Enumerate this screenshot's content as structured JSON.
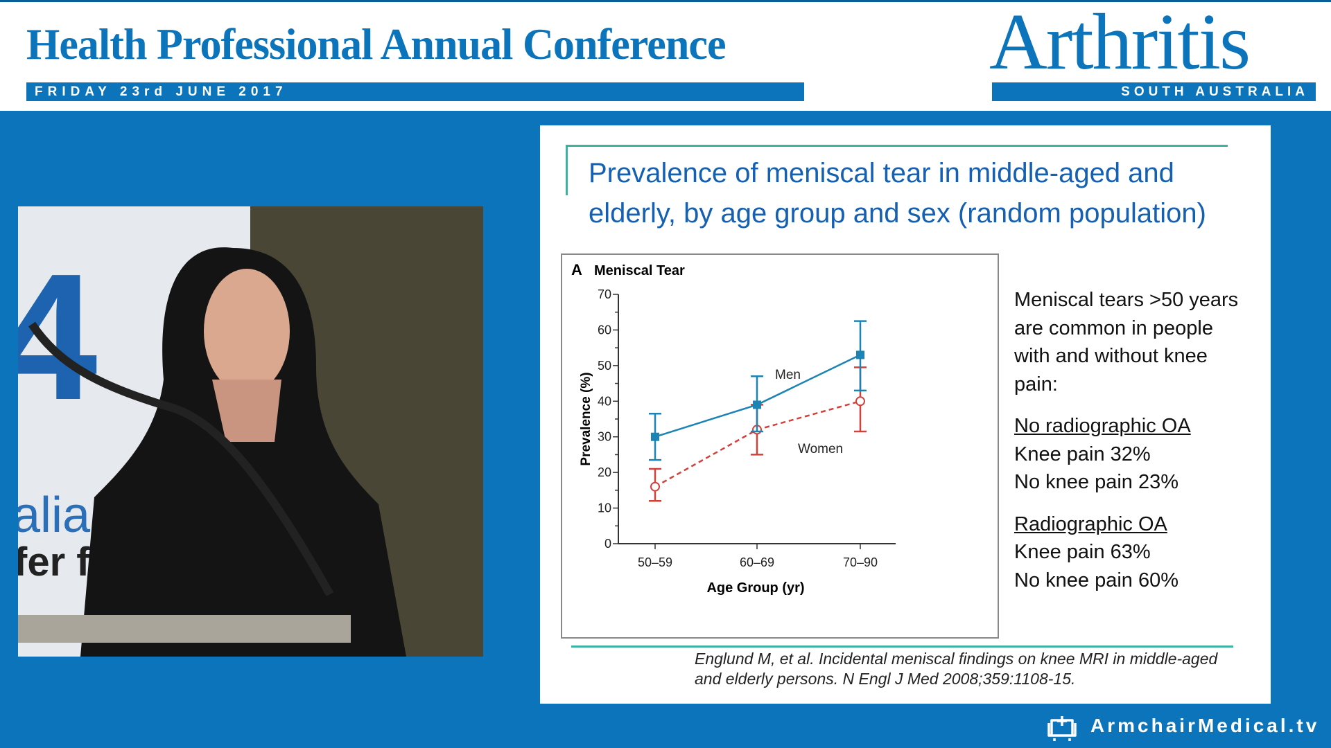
{
  "header": {
    "title": "Health Professional Annual Conference",
    "date": "FRIDAY 23rd JUNE 2017",
    "logo_text": "Arthritis",
    "logo_sub": "SOUTH AUSTRALIA"
  },
  "video": {
    "banner_number": "4",
    "banner_line1": "alia",
    "banner_line2": "fer f"
  },
  "slide": {
    "title_line1": "Prevalence of meniscal tear in middle-aged and",
    "title_line2": "elderly, by age group and sex (random population)",
    "notes": {
      "intro": [
        "Meniscal tears >50 years",
        "are common in people",
        "with and without knee",
        "pain:"
      ],
      "group1_heading": "No radiographic OA",
      "group1_items": [
        "Knee pain 32%",
        "No knee pain 23%"
      ],
      "group2_heading": "Radiographic OA",
      "group2_items": [
        "Knee pain 63%",
        "No knee pain 60%"
      ]
    },
    "citation_line1": "Englund M, et al. Incidental meniscal findings on knee MRI in middle-aged",
    "citation_line2": "and elderly persons. N Engl J Med 2008;359:1108-15."
  },
  "footer": {
    "brand": "ArmchairMedical.tv",
    "icon": "armchair-icon"
  },
  "colors": {
    "brand_blue": "#0b74ba",
    "men": "#1b84b5",
    "women": "#d2403a",
    "title_blue": "#1560b0",
    "accent_teal": "#3bb3a0"
  },
  "chart_data": {
    "type": "line",
    "panel_letter": "A",
    "title": "Meniscal Tear",
    "xlabel": "Age Group (yr)",
    "ylabel": "Prevalence (%)",
    "categories": [
      "50–59",
      "60–69",
      "70–90"
    ],
    "ylim": [
      0,
      70
    ],
    "yticks": [
      0,
      10,
      20,
      30,
      40,
      50,
      60,
      70
    ],
    "grid": false,
    "series": [
      {
        "name": "Men",
        "values": [
          30,
          39,
          53
        ],
        "lower": [
          23.5,
          31.5,
          43
        ],
        "upper": [
          36.5,
          47,
          62.5
        ],
        "marker": "filled-square",
        "line": "solid",
        "color": "#1b84b5"
      },
      {
        "name": "Women",
        "values": [
          16,
          32,
          40
        ],
        "lower": [
          12,
          25,
          31.5
        ],
        "upper": [
          21,
          39,
          49.5
        ],
        "marker": "open-circle",
        "line": "dashed",
        "color": "#d2403a"
      }
    ]
  }
}
